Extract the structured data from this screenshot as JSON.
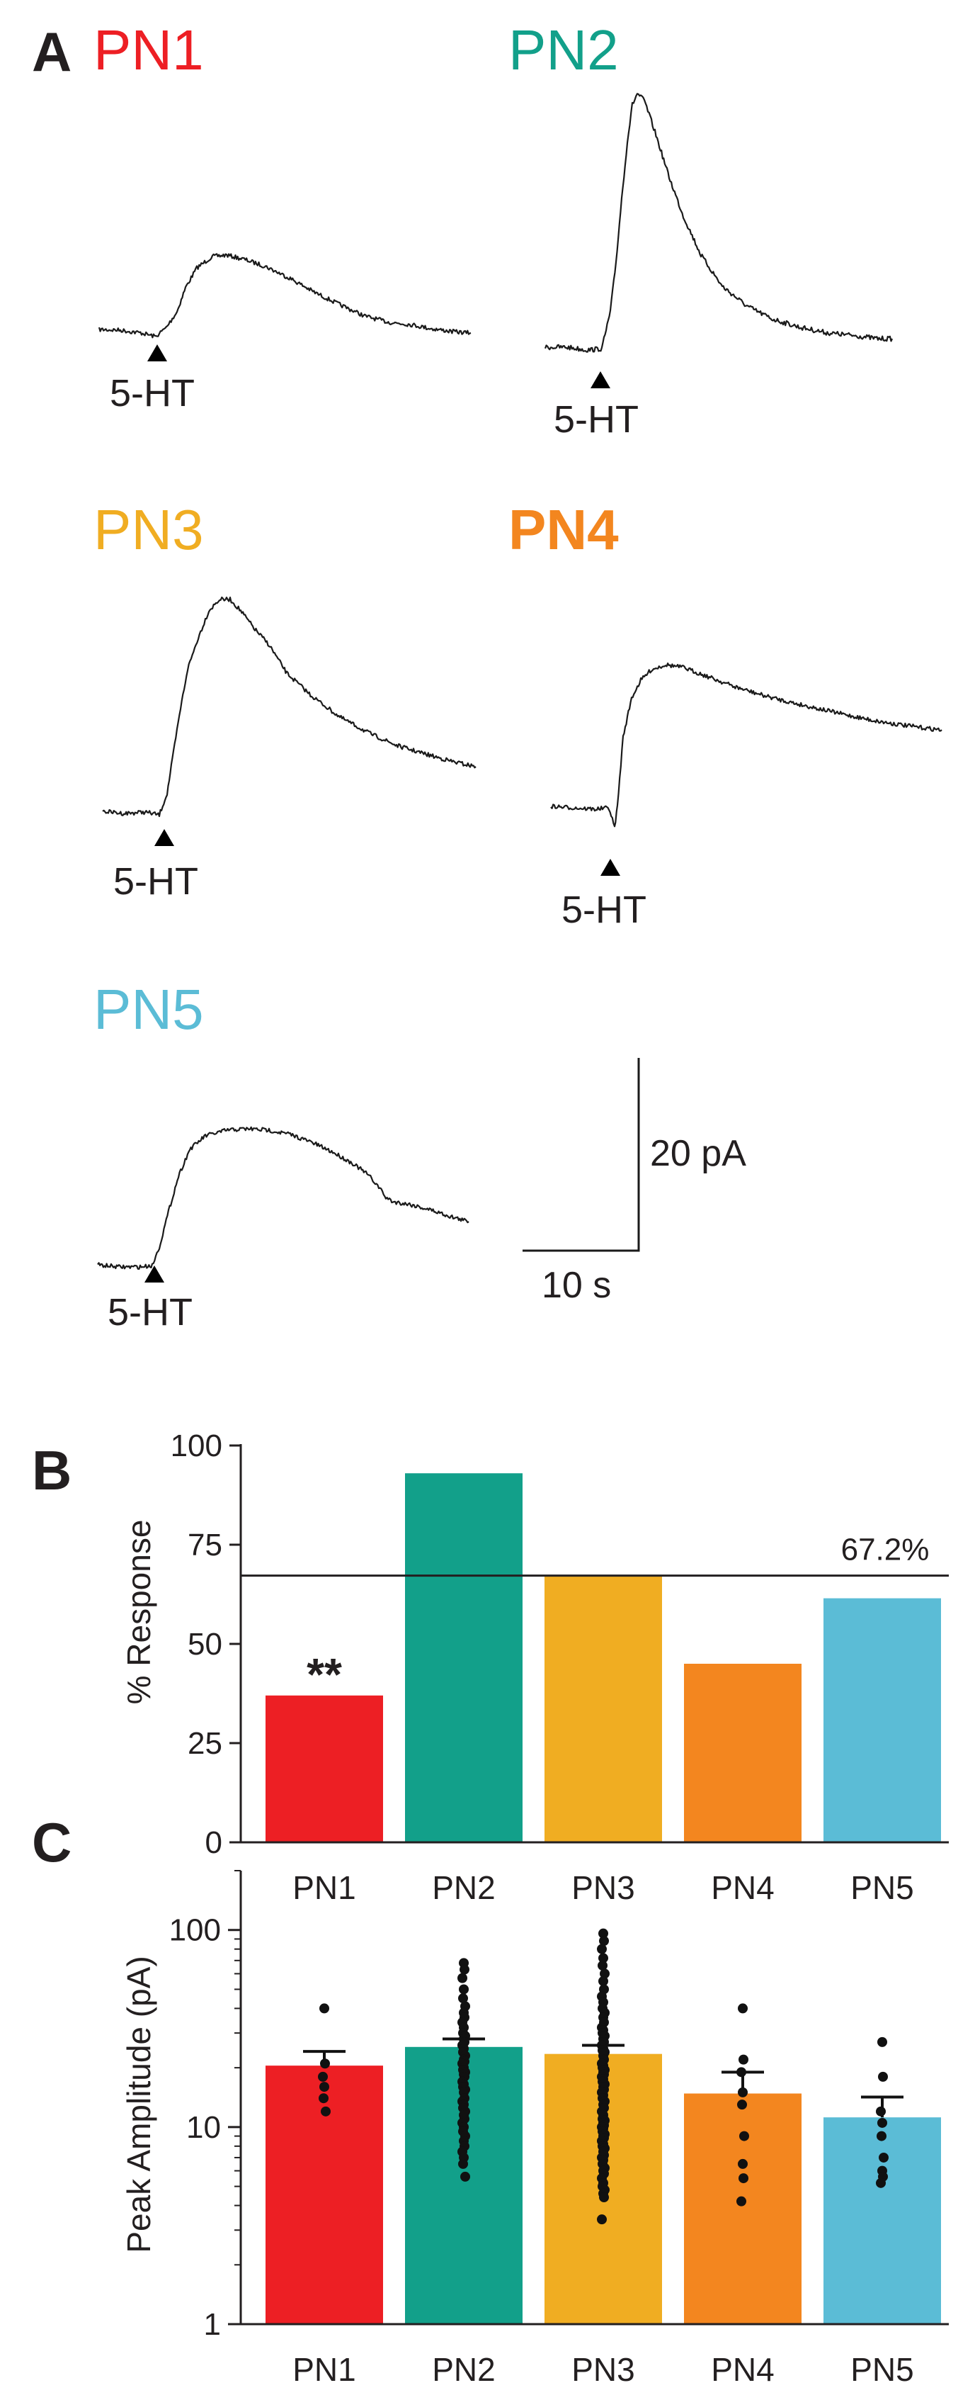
{
  "colors": {
    "PN1": "#ed1f24",
    "PN2": "#12a08a",
    "PN3": "#f0ad22",
    "PN4": "#f3861f",
    "PN5": "#5bbcd6",
    "ink": "#231f20"
  },
  "panel_a": {
    "letter": "A",
    "stimulus_label": "5-HT",
    "traces": [
      {
        "name": "PN1",
        "color_key": "PN1",
        "bold": false
      },
      {
        "name": "PN2",
        "color_key": "PN2",
        "bold": false
      },
      {
        "name": "PN3",
        "color_key": "PN3",
        "bold": false
      },
      {
        "name": "PN4",
        "color_key": "PN4",
        "bold": true
      },
      {
        "name": "PN5",
        "color_key": "PN5",
        "bold": false
      }
    ],
    "scale_bar": {
      "amplitude_label": "20 pA",
      "time_label": "10 s"
    }
  },
  "panel_b": {
    "letter": "B"
  },
  "panel_c": {
    "letter": "C"
  },
  "chart_data": [
    {
      "type": "bar",
      "panel": "B",
      "categories": [
        "PN1",
        "PN2",
        "PN3",
        "PN4",
        "PN5"
      ],
      "values": [
        37,
        93,
        67,
        45,
        61.5
      ],
      "ylabel": "% Response",
      "ylim": [
        0,
        100
      ],
      "yticks": [
        0,
        25,
        50,
        75,
        100
      ],
      "reference_line": {
        "value": 67.2,
        "label": "67.2%"
      },
      "annotations": [
        {
          "category": "PN1",
          "text": "**"
        }
      ],
      "grid": false
    },
    {
      "type": "bar",
      "panel": "C",
      "log_scale": true,
      "categories": [
        "PN1",
        "PN2",
        "PN3",
        "PN4",
        "PN5"
      ],
      "values": [
        20.5,
        25.5,
        23.5,
        14.8,
        11.2
      ],
      "error_upper": [
        24.2,
        28,
        26,
        19,
        14.2
      ],
      "ylabel": "Peak Amplitude (pA)",
      "ylim": [
        1,
        200
      ],
      "yticks": [
        1,
        10,
        100
      ],
      "yticklabels": [
        "1",
        "10",
        "100"
      ],
      "grid": false,
      "points": [
        [
          40,
          21,
          18,
          16,
          14,
          12
        ],
        [
          68,
          63,
          57,
          50,
          45,
          41,
          38,
          36,
          34,
          32,
          30,
          29,
          28,
          27,
          26,
          25,
          24,
          23,
          22,
          21.5,
          21,
          20,
          19.5,
          19,
          18.5,
          18,
          17,
          16.5,
          16,
          15.5,
          15,
          14,
          13.5,
          13,
          12.5,
          12,
          11.5,
          11,
          10.5,
          10,
          9.5,
          9,
          8.5,
          8,
          7.5,
          7,
          6.5,
          5.6
        ],
        [
          96,
          88,
          80,
          72,
          66,
          60,
          55,
          50,
          46,
          43,
          40,
          38,
          36,
          34,
          32,
          31,
          30,
          29,
          28,
          27,
          26,
          25,
          24.5,
          24,
          23,
          22,
          21,
          20.5,
          20,
          19.5,
          19,
          18.5,
          18,
          17.5,
          17,
          16.5,
          16,
          15.5,
          15,
          14.5,
          14,
          13.5,
          13,
          12.5,
          12,
          11.5,
          11,
          10.8,
          10.5,
          10.2,
          10,
          9.8,
          9.5,
          9.2,
          9,
          8.8,
          8.5,
          8.2,
          8,
          7.8,
          7.5,
          7.2,
          7,
          6.8,
          6.5,
          6.2,
          6,
          5.8,
          5.5,
          5.2,
          5,
          4.8,
          4.6,
          4.4,
          3.4
        ],
        [
          40,
          22,
          19,
          15,
          13,
          9,
          6.5,
          5.5,
          4.2
        ],
        [
          27,
          18,
          12,
          10.5,
          9,
          7,
          6,
          5.6,
          5.2
        ]
      ]
    }
  ]
}
